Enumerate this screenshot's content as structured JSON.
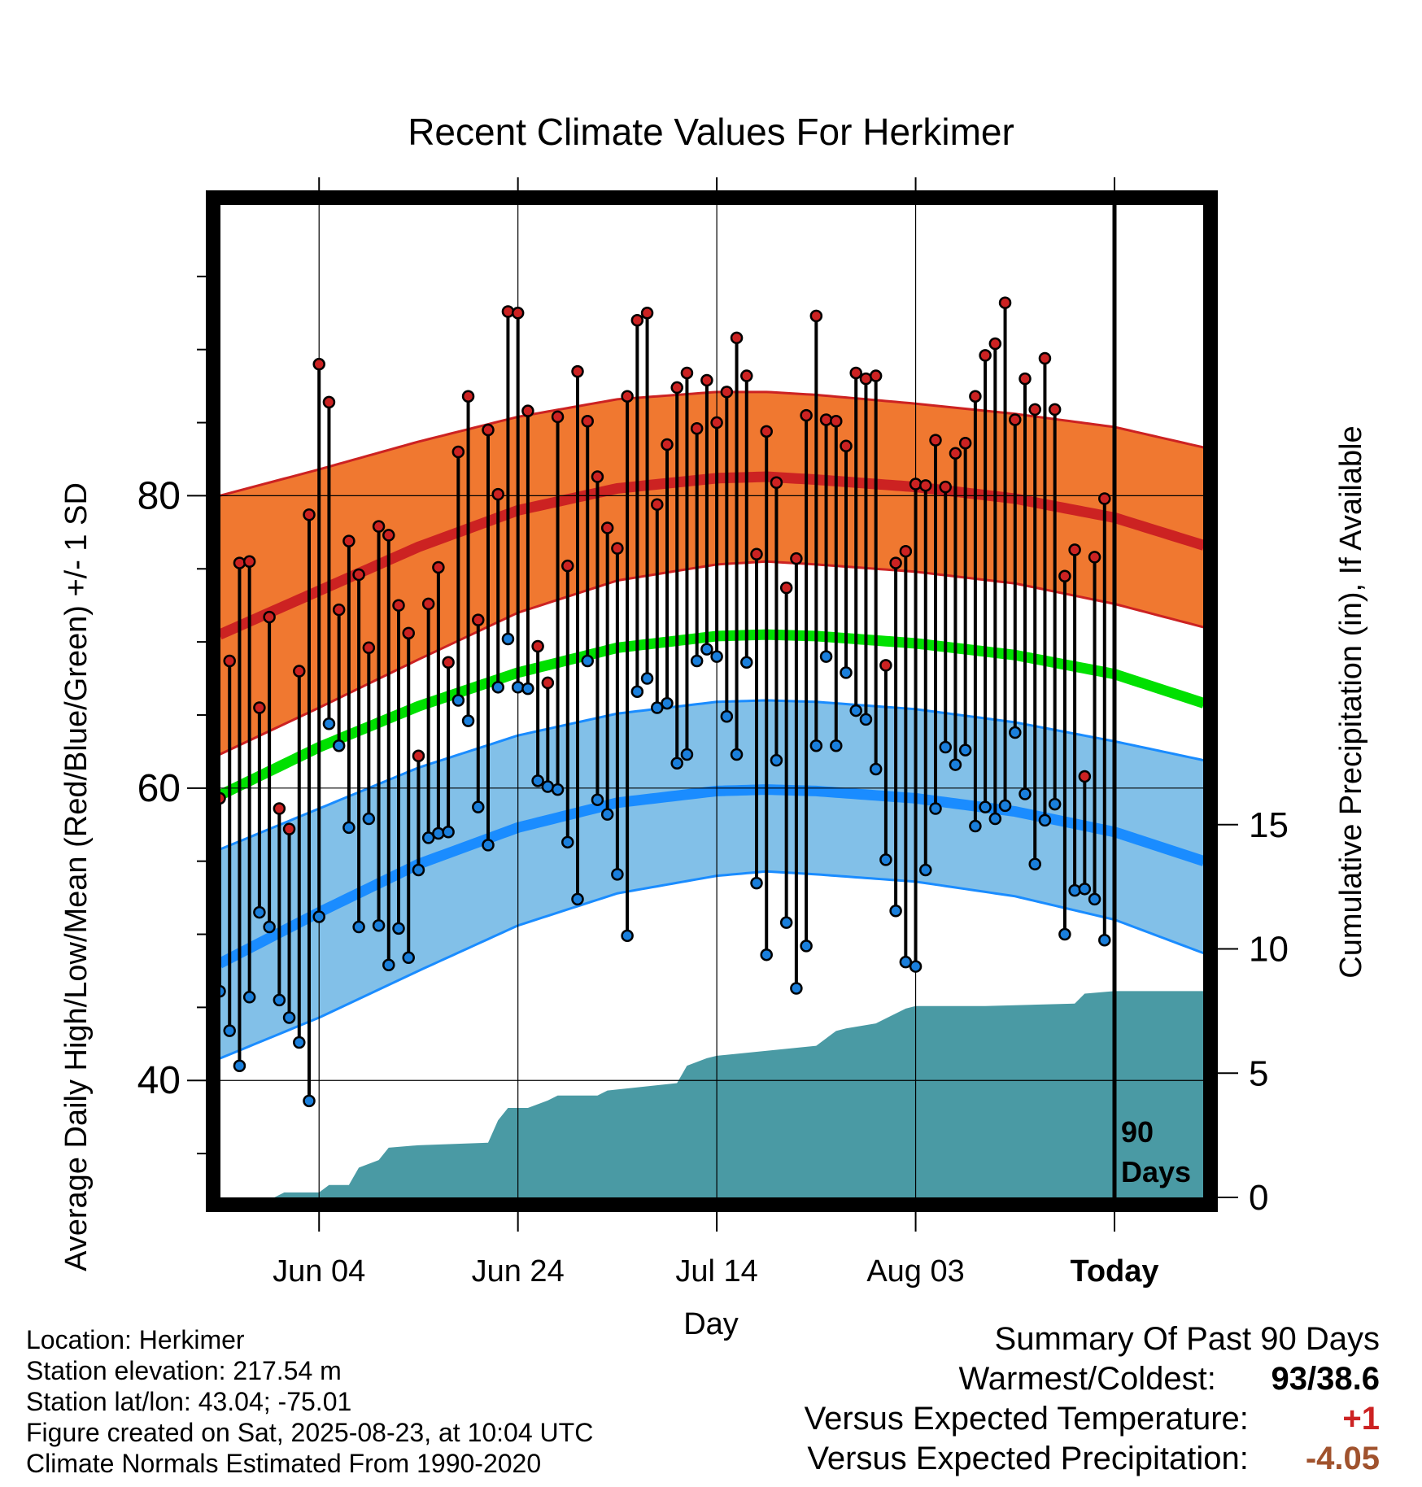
{
  "chart_data": {
    "type": "line",
    "title": "Recent Climate Values For Herkimer",
    "xlabel": "Day",
    "ylabel": "Average Daily High/Low/Mean (Red/Blue/Green) +/- 1 SD",
    "y2label": "Cumulative Precipitation (in), If Available",
    "ylim": [
      32,
      100
    ],
    "y2lim": [
      0,
      40
    ],
    "xlim": [
      0,
      99
    ],
    "x_ticks": [
      {
        "x": 10,
        "label": "Jun 04"
      },
      {
        "x": 30,
        "label": "Jun 24"
      },
      {
        "x": 50,
        "label": "Jul 14"
      },
      {
        "x": 70,
        "label": "Aug 03"
      },
      {
        "x": 90,
        "label": "Today"
      }
    ],
    "y_ticks": [
      40,
      60,
      80
    ],
    "y2_ticks": [
      0,
      5,
      10,
      15
    ],
    "today_marker": {
      "x": 90,
      "label_line1": "90",
      "label_line2": "Days"
    },
    "grid": true,
    "normals": {
      "x": [
        0,
        10,
        20,
        30,
        40,
        50,
        55,
        60,
        70,
        80,
        90,
        99
      ],
      "high_mean": [
        70.5,
        73.5,
        76.5,
        79,
        80.5,
        81.2,
        81.3,
        81.1,
        80.6,
        79.8,
        78.5,
        76.6
      ],
      "high_upper": [
        80,
        81.8,
        83.7,
        85.4,
        86.6,
        87.1,
        87.1,
        86.9,
        86.3,
        85.6,
        84.7,
        83.3
      ],
      "high_lower": [
        62.3,
        65.5,
        68.8,
        72,
        74.2,
        75.3,
        75.5,
        75.3,
        74.8,
        74,
        72.6,
        71
      ],
      "mean": [
        59.5,
        62.8,
        65.6,
        67.9,
        69.6,
        70.4,
        70.5,
        70.4,
        69.9,
        69.1,
        67.8,
        65.8
      ],
      "low_mean": [
        48,
        51.5,
        54.8,
        57.3,
        59,
        59.8,
        59.9,
        59.8,
        59.3,
        58.4,
        57,
        55
      ],
      "low_upper": [
        55.8,
        58.6,
        61.4,
        63.6,
        65.1,
        65.9,
        66,
        65.9,
        65.4,
        64.5,
        63.2,
        61.9
      ],
      "low_lower": [
        41.5,
        44.3,
        47.5,
        50.6,
        52.8,
        54,
        54.3,
        54.1,
        53.6,
        52.6,
        51,
        48.7
      ]
    },
    "series": [
      {
        "name": "High",
        "values": [
          59.3,
          68.7,
          75.4,
          75.5,
          65.5,
          71.7,
          58.6,
          57.2,
          68.0,
          78.7,
          89.0,
          86.4,
          72.2,
          76.9,
          74.6,
          69.6,
          77.9,
          77.3,
          72.5,
          70.6,
          62.2,
          72.6,
          75.1,
          68.6,
          83.0,
          86.8,
          71.5,
          84.5,
          80.1,
          92.6,
          92.5,
          85.8,
          69.7,
          67.2,
          85.4,
          75.2,
          88.5,
          85.1,
          81.3,
          77.8,
          76.4,
          86.8,
          92.0,
          92.5,
          79.4,
          83.5,
          87.4,
          88.4,
          84.6,
          87.9,
          85.0,
          87.1,
          90.8,
          88.2,
          76.0,
          84.4,
          80.9,
          73.7,
          75.7,
          85.5,
          92.3,
          85.2,
          85.1,
          83.4,
          88.4,
          88.0,
          88.2,
          68.4,
          75.4,
          76.2,
          80.8,
          80.7,
          83.8,
          80.6,
          82.9,
          83.6,
          86.8,
          89.6,
          90.4,
          93.2,
          85.2,
          88.0,
          85.9,
          89.4,
          85.9,
          74.5,
          76.3,
          60.8,
          75.8,
          79.8
        ]
      },
      {
        "name": "Low",
        "values": [
          46.1,
          43.4,
          41.0,
          45.7,
          51.5,
          50.5,
          45.5,
          44.3,
          42.6,
          38.6,
          51.2,
          64.4,
          62.9,
          57.3,
          50.5,
          57.9,
          50.6,
          47.9,
          50.4,
          48.4,
          54.4,
          56.6,
          56.9,
          57.0,
          66.0,
          64.6,
          58.7,
          56.1,
          66.9,
          70.2,
          66.9,
          66.8,
          60.5,
          60.1,
          59.9,
          56.3,
          52.4,
          68.7,
          59.2,
          58.2,
          54.1,
          49.9,
          66.6,
          67.5,
          65.5,
          65.8,
          61.7,
          62.3,
          68.7,
          69.5,
          69.0,
          64.9,
          62.3,
          68.6,
          53.5,
          48.6,
          61.9,
          50.8,
          46.3,
          49.2,
          62.9,
          69.0,
          62.9,
          67.9,
          65.3,
          64.7,
          61.3,
          55.1,
          51.6,
          48.1,
          47.8,
          54.4,
          58.6,
          62.8,
          61.6,
          62.6,
          57.4,
          58.7,
          57.9,
          58.8,
          63.8,
          59.6,
          54.8,
          57.8,
          58.9,
          50.0,
          53.0,
          53.1,
          52.4,
          49.6
        ]
      },
      {
        "name": "Cumulative Precipitation",
        "x": [
          0,
          5.5,
          6.5,
          10,
          11,
          13,
          14,
          16,
          17,
          20,
          27,
          28,
          29,
          31,
          33,
          34,
          38,
          39,
          46,
          47,
          49,
          50,
          60,
          61,
          62,
          63,
          66,
          67,
          69,
          70,
          77,
          86,
          87,
          90,
          99
        ],
        "values": [
          0,
          0,
          0.2,
          0.2,
          0.5,
          0.5,
          1.2,
          1.5,
          2.0,
          2.1,
          2.2,
          3.1,
          3.6,
          3.6,
          3.9,
          4.1,
          4.1,
          4.3,
          4.6,
          5.3,
          5.6,
          5.7,
          6.1,
          6.4,
          6.7,
          6.8,
          7.0,
          7.2,
          7.6,
          7.7,
          7.7,
          7.8,
          8.2,
          8.3,
          8.3
        ]
      }
    ]
  },
  "footer": {
    "location": "Location: Herkimer",
    "elevation": "Station elevation: 217.54 m",
    "latlon": "Station lat/lon: 43.04; -75.01",
    "created": "Figure created on Sat, 2025-08-23, at 10:04 UTC",
    "normals": "Climate Normals Estimated From 1990-2020"
  },
  "summary": {
    "title": "Summary Of Past 90 Days",
    "warm_cold_label": "Warmest/Coldest:",
    "warm_cold_value": "93/38.6",
    "temp_label": "Versus Expected Temperature:",
    "temp_value": "+1",
    "precip_label": "Versus Expected Precipitation:",
    "precip_value": "-4.05"
  },
  "colors": {
    "high_band": "#f07830",
    "high_line": "#cc2222",
    "mean_line": "#00e000",
    "low_band": "#82c0e8",
    "low_line": "#1a8cff",
    "precip": "#4a9aa4",
    "high_dot": "#cc2222",
    "low_dot": "#1a7fdc",
    "temp_value": "#cc2222",
    "precip_value": "#a0522d"
  }
}
